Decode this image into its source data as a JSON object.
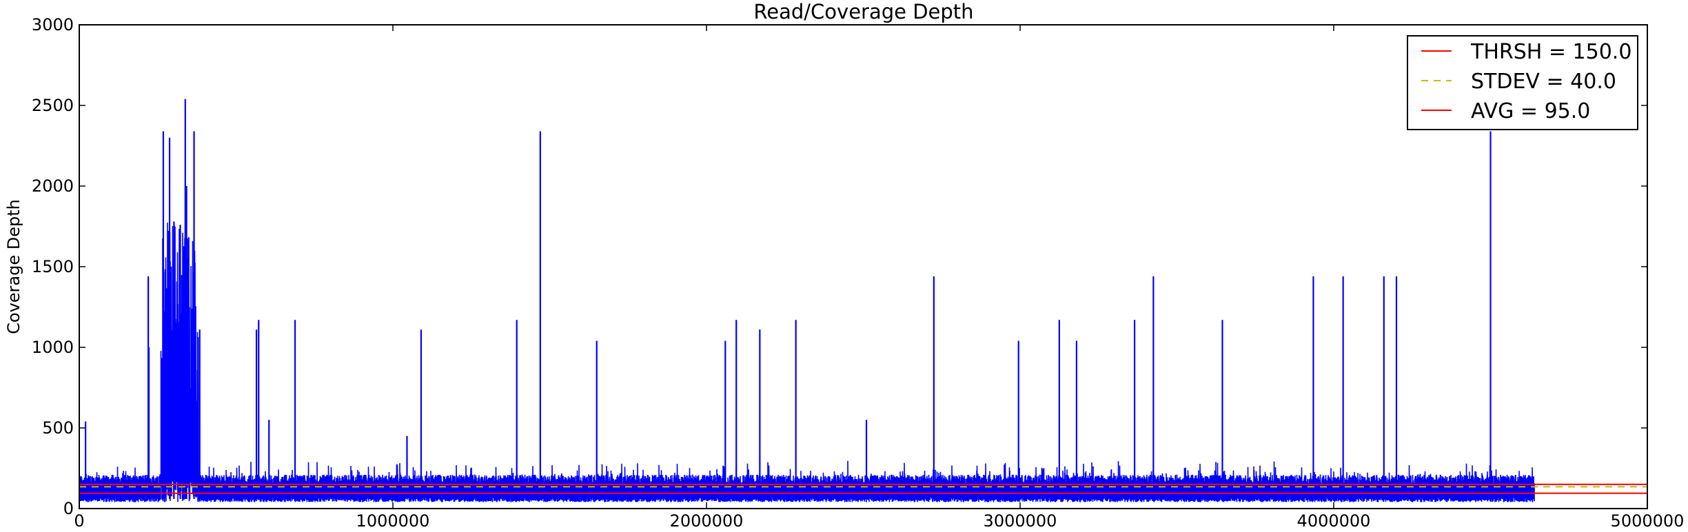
{
  "chart_data": {
    "type": "line",
    "title": "Read/Coverage Depth",
    "xlabel": "",
    "ylabel": "Coverage Depth",
    "xlim": [
      0,
      5000000
    ],
    "ylim": [
      0,
      3000
    ],
    "xticks": [
      0,
      1000000,
      2000000,
      3000000,
      4000000,
      5000000
    ],
    "xtick_labels": [
      "0",
      "1000000",
      "2000000",
      "3000000",
      "4000000",
      "5000000"
    ],
    "yticks": [
      0,
      500,
      1000,
      1500,
      2000,
      2500,
      3000
    ],
    "ytick_labels": [
      "0",
      "500",
      "1000",
      "1500",
      "2000",
      "2500",
      "3000"
    ],
    "grid": false,
    "legend_position": "top-right",
    "genome_length": 4640000,
    "baseline_band": [
      40,
      180
    ],
    "dense_region": [
      260000,
      380000
    ],
    "spikes": [
      {
        "x": 20000,
        "y": 540
      },
      {
        "x": 220000,
        "y": 1440
      },
      {
        "x": 222000,
        "y": 1000
      },
      {
        "x": 268000,
        "y": 2340
      },
      {
        "x": 288000,
        "y": 2300
      },
      {
        "x": 302000,
        "y": 1780
      },
      {
        "x": 322000,
        "y": 1760
      },
      {
        "x": 338000,
        "y": 2540
      },
      {
        "x": 342000,
        "y": 2000
      },
      {
        "x": 366000,
        "y": 2340
      },
      {
        "x": 384000,
        "y": 1110
      },
      {
        "x": 565000,
        "y": 1110
      },
      {
        "x": 572000,
        "y": 1170
      },
      {
        "x": 605000,
        "y": 550
      },
      {
        "x": 688000,
        "y": 1170
      },
      {
        "x": 1045000,
        "y": 450
      },
      {
        "x": 1090000,
        "y": 1110
      },
      {
        "x": 1395000,
        "y": 1170
      },
      {
        "x": 1470000,
        "y": 2340
      },
      {
        "x": 1650000,
        "y": 1040
      },
      {
        "x": 2060000,
        "y": 1040
      },
      {
        "x": 2095000,
        "y": 1170
      },
      {
        "x": 2170000,
        "y": 1110
      },
      {
        "x": 2285000,
        "y": 1170
      },
      {
        "x": 2510000,
        "y": 550
      },
      {
        "x": 2725000,
        "y": 1440
      },
      {
        "x": 2995000,
        "y": 1040
      },
      {
        "x": 3125000,
        "y": 1170
      },
      {
        "x": 3180000,
        "y": 1040
      },
      {
        "x": 3365000,
        "y": 1170
      },
      {
        "x": 3425000,
        "y": 1440
      },
      {
        "x": 3645000,
        "y": 1170
      },
      {
        "x": 3935000,
        "y": 1440
      },
      {
        "x": 4030000,
        "y": 1440
      },
      {
        "x": 4160000,
        "y": 1440
      },
      {
        "x": 4200000,
        "y": 1440
      },
      {
        "x": 4500000,
        "y": 2340
      }
    ],
    "reference_lines": [
      {
        "name": "THRSH = 150.0",
        "y": 150,
        "color": "#ff0000",
        "style": "solid"
      },
      {
        "name": "STDEV = 40.0",
        "y": 135,
        "color": "#bfbf00",
        "style": "dashed"
      },
      {
        "name": "AVG = 95.0",
        "y": 95,
        "color": "#ff0000",
        "style": "solid"
      }
    ],
    "series": [
      {
        "color": "#0000ff"
      }
    ]
  },
  "legend": {
    "items": [
      {
        "label": "THRSH = 150.0",
        "color": "#ff0000",
        "style": "solid"
      },
      {
        "label": "STDEV = 40.0",
        "color": "#bfbf00",
        "style": "dashed"
      },
      {
        "label": "AVG = 95.0",
        "color": "#ff0000",
        "style": "solid"
      }
    ]
  }
}
